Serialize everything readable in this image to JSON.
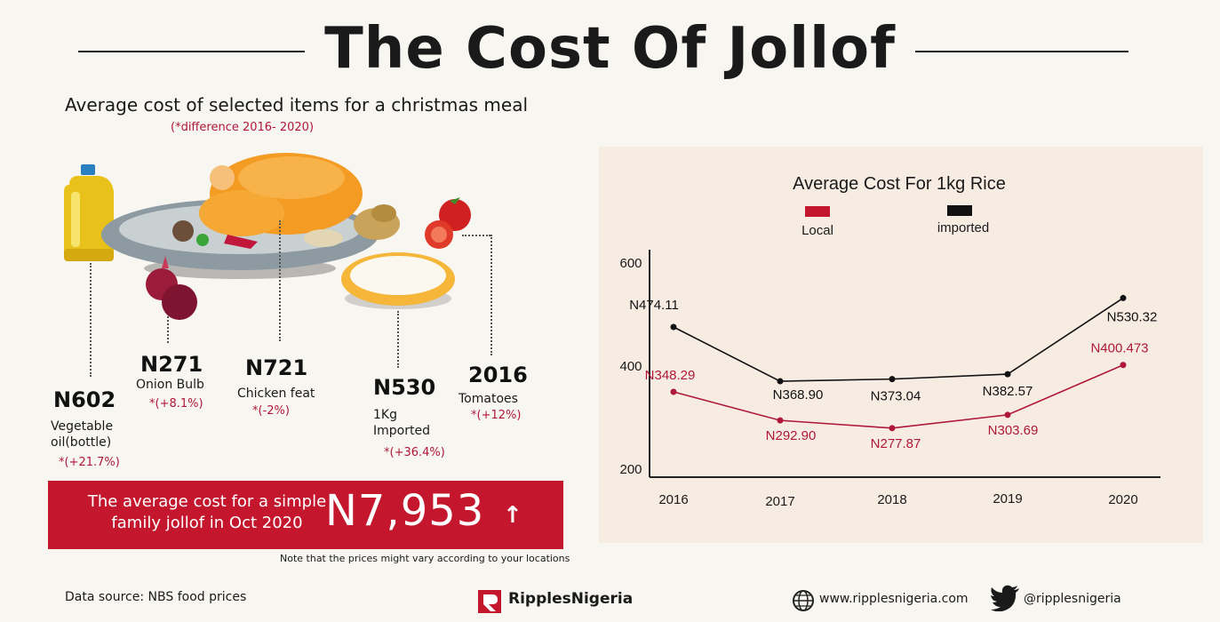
{
  "title": "The Cost Of Jollof",
  "subtitle": "Average cost of selected items for a christmas meal",
  "difference_note": "(*difference  2016- 2020)",
  "items": [
    {
      "price": "N602",
      "label_lines": [
        "Vegetable",
        "oil(bottle)"
      ],
      "change": "*(+21.7%)"
    },
    {
      "price": "N271",
      "label_lines": [
        "Onion Bulb"
      ],
      "change": "*(+8.1%)"
    },
    {
      "price": "N721",
      "label_lines": [
        "Chicken feat"
      ],
      "change": "*(-2%)"
    },
    {
      "price": "N530",
      "label_lines": [
        "1Kg",
        "Imported"
      ],
      "change": "*(+36.4%)"
    },
    {
      "price": "2016",
      "label_lines": [
        "Tomatoes"
      ],
      "change": "*(+12%)"
    }
  ],
  "summary": {
    "text_lines": [
      "The average cost for a simple",
      "family jollof in Oct 2020"
    ],
    "value": "N7,953",
    "arrow": "↑"
  },
  "vary_note": "Note that the prices might vary according to your locations",
  "footer": {
    "source": "Data source: NBS food prices",
    "brand": "RipplesNigeria",
    "website": "www.ripplesnigeria.com",
    "handle": "@ripplesnigeria",
    "globe_icon": "globe-icon",
    "twitter_icon": "twitter-bird-icon"
  },
  "colors": {
    "accent_red": "#c4162d",
    "local_line": "#b0183a",
    "imported_line": "#111111",
    "panel_bg": "#f6ece2"
  },
  "chart_data": {
    "type": "line",
    "title": "Average  Cost For 1kg Rice",
    "categories": [
      "2016",
      "2017",
      "2018",
      "2019",
      "2020"
    ],
    "series": [
      {
        "name": "Local",
        "values": [
          348.29,
          292.9,
          277.87,
          303.69,
          400.473
        ],
        "labels": [
          "N348.29",
          "N292.90",
          "N277.87",
          "N303.69",
          "N400.473"
        ]
      },
      {
        "name": "imported",
        "values": [
          474.11,
          368.9,
          373.04,
          382.57,
          530.32
        ],
        "labels": [
          "N474.11",
          "N368.90",
          "N373.04",
          "N382.57",
          "N530.32"
        ]
      }
    ],
    "yticks": [
      "200",
      "400",
      "600"
    ],
    "ylim": [
      200,
      600
    ],
    "legend": "top",
    "grid": false
  }
}
